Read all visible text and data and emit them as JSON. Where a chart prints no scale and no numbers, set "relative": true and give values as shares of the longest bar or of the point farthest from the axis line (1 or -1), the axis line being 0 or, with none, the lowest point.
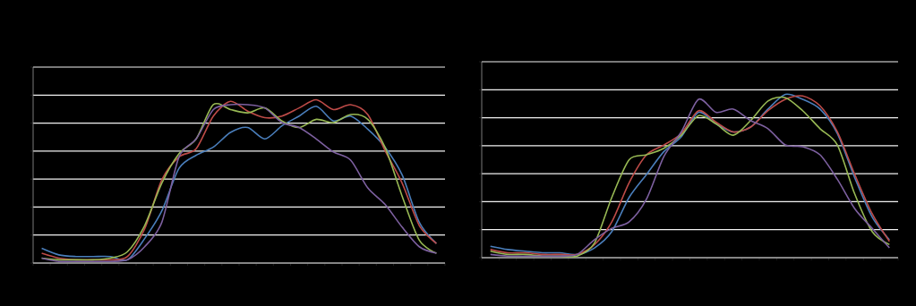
{
  "chart_data": [
    {
      "type": "line",
      "relative": true,
      "grid": "y",
      "categories": [
        null,
        null,
        null,
        null,
        null,
        null,
        null,
        null,
        null,
        null,
        null,
        null,
        null,
        null,
        null,
        null,
        null,
        null,
        null,
        null,
        null,
        null,
        null,
        null
      ],
      "series": [
        {
          "color": "#4a7ebb",
          "values": [
            0.09,
            0.05,
            0.04,
            0.04,
            0.04,
            0.02,
            0.15,
            0.32,
            0.58,
            0.66,
            0.71,
            0.8,
            0.83,
            0.76,
            0.84,
            0.9,
            0.96,
            0.87,
            0.9,
            0.82,
            0.71,
            0.54,
            0.25,
            0.12
          ]
        },
        {
          "color": "#be4b48",
          "values": [
            0.06,
            0.03,
            0.02,
            0.02,
            0.02,
            0.04,
            0.21,
            0.51,
            0.65,
            0.7,
            0.9,
            0.99,
            0.93,
            0.89,
            0.9,
            0.95,
            1,
            0.94,
            0.97,
            0.91,
            0.69,
            0.49,
            0.23,
            0.12
          ]
        },
        {
          "color": "#98b954",
          "values": [
            0.03,
            0.02,
            0.02,
            0.02,
            0.03,
            0.07,
            0.23,
            0.49,
            0.67,
            0.76,
            0.97,
            0.94,
            0.92,
            0.95,
            0.87,
            0.83,
            0.88,
            0.86,
            0.91,
            0.88,
            0.71,
            0.41,
            0.14,
            0.06
          ]
        },
        {
          "color": "#7d60a0",
          "values": [
            0.03,
            0.01,
            0.01,
            0.01,
            0.01,
            0.02,
            0.1,
            0.25,
            0.65,
            0.76,
            0.94,
            0.97,
            0.97,
            0.95,
            0.86,
            0.83,
            0.76,
            0.68,
            0.63,
            0.46,
            0.36,
            0.22,
            0.1,
            0.06
          ]
        }
      ]
    },
    {
      "type": "line",
      "relative": true,
      "grid": "y",
      "categories": [
        null,
        null,
        null,
        null,
        null,
        null,
        null,
        null,
        null,
        null,
        null,
        null,
        null,
        null,
        null,
        null,
        null,
        null,
        null,
        null,
        null,
        null,
        null,
        null
      ],
      "series": [
        {
          "color": "#4a7ebb",
          "values": [
            0.07,
            0.05,
            0.04,
            0.03,
            0.03,
            0.02,
            0.06,
            0.16,
            0.37,
            0.51,
            0.65,
            0.74,
            0.89,
            0.82,
            0.77,
            0.8,
            0.91,
            1,
            0.97,
            0.91,
            0.76,
            0.49,
            0.25,
            0.11
          ]
        },
        {
          "color": "#be4b48",
          "values": [
            0.05,
            0.03,
            0.03,
            0.02,
            0.02,
            0.02,
            0.08,
            0.22,
            0.46,
            0.63,
            0.69,
            0.76,
            0.9,
            0.83,
            0.77,
            0.8,
            0.9,
            0.97,
            0.99,
            0.93,
            0.77,
            0.51,
            0.27,
            0.1
          ]
        },
        {
          "color": "#98b954",
          "values": [
            0.04,
            0.02,
            0.02,
            0.01,
            0.01,
            0.01,
            0.09,
            0.37,
            0.6,
            0.63,
            0.67,
            0.75,
            0.87,
            0.82,
            0.75,
            0.84,
            0.96,
            0.98,
            0.9,
            0.79,
            0.69,
            0.39,
            0.16,
            0.08
          ]
        },
        {
          "color": "#7d60a0",
          "values": [
            0.02,
            0.01,
            0.01,
            0.01,
            0.01,
            0.02,
            0.11,
            0.18,
            0.22,
            0.36,
            0.62,
            0.77,
            0.97,
            0.89,
            0.91,
            0.84,
            0.79,
            0.69,
            0.68,
            0.63,
            0.48,
            0.3,
            0.18,
            0.06
          ]
        }
      ]
    }
  ]
}
